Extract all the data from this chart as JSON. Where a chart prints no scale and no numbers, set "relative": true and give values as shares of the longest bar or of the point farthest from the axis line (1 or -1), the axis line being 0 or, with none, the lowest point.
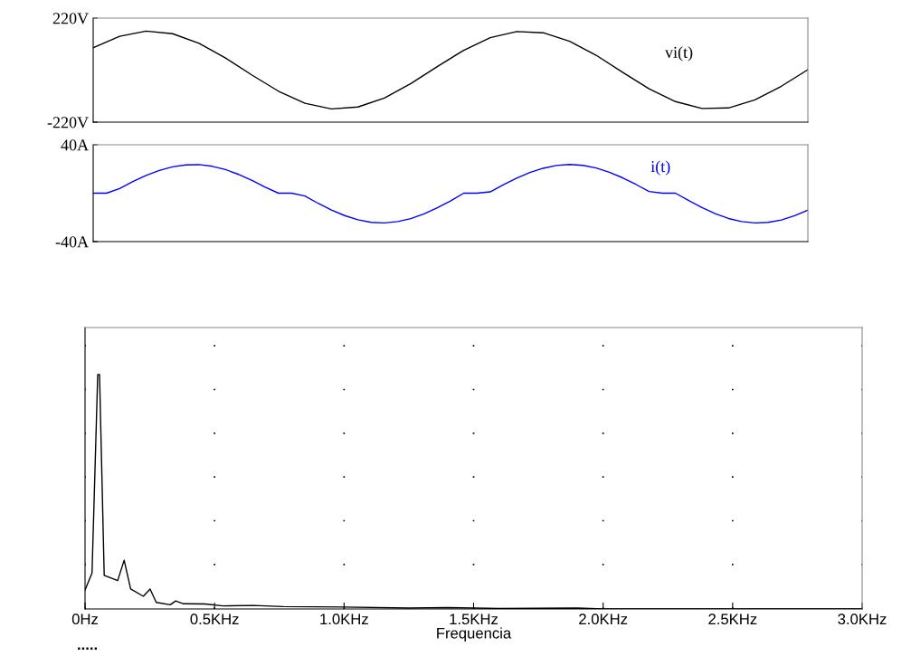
{
  "chart_data": [
    {
      "type": "line",
      "categories": [
        null,
        null,
        null,
        null,
        null,
        null,
        null,
        null,
        null,
        null,
        null,
        null,
        null,
        null,
        null,
        null,
        null,
        null,
        null,
        null,
        null,
        null,
        null,
        null,
        null,
        null,
        null,
        null
      ],
      "series": [
        {
          "name": "vi(t)",
          "color": "#000000",
          "values": [
            95,
            143,
            165,
            154,
            113,
            51,
            -21,
            -89,
            -140,
            -164,
            -156,
            -118,
            -57,
            15,
            84,
            137,
            163,
            158,
            122,
            63,
            -9,
            -79,
            -133,
            -162,
            -160,
            -126,
            -68,
            2
          ]
        }
      ],
      "ylim": [
        -220,
        220
      ],
      "yticks": [
        {
          "value": 220,
          "label": "220V"
        },
        {
          "value": -220,
          "label": "-220V"
        }
      ],
      "tick_labels": "y"
    },
    {
      "type": "line",
      "categories": [
        null,
        null,
        null,
        null,
        null,
        null,
        null,
        null,
        null,
        null,
        null,
        null,
        null,
        null,
        null,
        null,
        null,
        null,
        null,
        null,
        null,
        null,
        null,
        null,
        null,
        null,
        null,
        null,
        null,
        null,
        null,
        null,
        null,
        null,
        null,
        null,
        null,
        null,
        null,
        null,
        null,
        null,
        null,
        null,
        null,
        null,
        null,
        null,
        null,
        null,
        null,
        null,
        null,
        null,
        null
      ],
      "series": [
        {
          "name": "i(t)",
          "color": "#0000ff",
          "values": [
            0,
            0,
            3.9,
            9.6,
            14.7,
            18.8,
            21.8,
            23.4,
            23.6,
            22.2,
            19.5,
            15.5,
            10.6,
            5.0,
            0,
            0,
            -2.3,
            -8.4,
            -13.9,
            -18.5,
            -22.0,
            -24.1,
            -24.6,
            -23.5,
            -21.0,
            -17.1,
            -12.1,
            -6.4,
            0,
            0,
            1.1,
            7.0,
            12.4,
            17.1,
            20.6,
            22.9,
            23.7,
            23.0,
            20.8,
            17.3,
            12.7,
            7.3,
            1.4,
            0,
            0,
            -6.1,
            -11.9,
            -16.9,
            -20.9,
            -23.5,
            -24.6,
            -24.1,
            -22.1,
            -18.6,
            -14.0
          ]
        }
      ],
      "ylim": [
        -40,
        40
      ],
      "yticks": [
        {
          "value": 40,
          "label": "40A"
        },
        {
          "value": -40,
          "label": "-40A"
        }
      ],
      "tick_labels": "y"
    },
    {
      "type": "line",
      "xlabel": "Frequencia",
      "relative": true,
      "x": [
        0,
        0.027,
        0.049,
        0.056,
        0.074,
        0.126,
        0.151,
        0.176,
        0.225,
        0.251,
        0.275,
        0.329,
        0.35,
        0.38,
        0.463,
        0.533,
        0.65,
        0.765,
        1.0,
        1.25,
        1.4,
        1.6,
        1.9,
        2.0,
        3.0
      ],
      "series": [
        {
          "color": "#000000",
          "values": [
            0.081,
            0.153,
            1.0,
            1.0,
            0.143,
            0.121,
            0.208,
            0.085,
            0.054,
            0.085,
            0.028,
            0.018,
            0.034,
            0.022,
            0.021,
            0.013,
            0.015,
            0.01,
            0.008,
            0.004,
            0.006,
            0.002,
            0.004,
            0,
            0
          ]
        }
      ],
      "xlim": [
        0,
        3
      ],
      "xticks": [
        {
          "value": 0,
          "label": "0Hz"
        },
        {
          "value": 0.5,
          "label": "0.5KHz"
        },
        {
          "value": 1.0,
          "label": "1.0KHz"
        },
        {
          "value": 1.5,
          "label": "1.5KHz"
        },
        {
          "value": 2.0,
          "label": "2.0KHz"
        },
        {
          "value": 2.5,
          "label": "2.5KHz"
        },
        {
          "value": 3.0,
          "label": "3.0KHz"
        }
      ],
      "tick_labels": "x",
      "grid": "x",
      "annotations": [
        "....."
      ]
    }
  ]
}
